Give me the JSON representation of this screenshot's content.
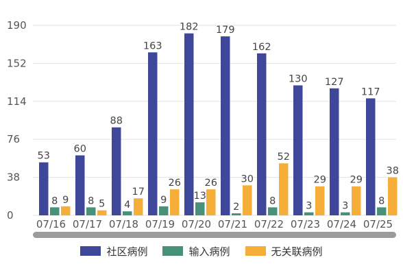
{
  "chart_data": {
    "type": "bar",
    "categories": [
      "07/16",
      "07/17",
      "07/18",
      "07/19",
      "07/20",
      "07/21",
      "07/22",
      "07/23",
      "07/24",
      "07/25"
    ],
    "series": [
      {
        "name": "社区病例",
        "color": "#3f479b",
        "values": [
          53,
          60,
          88,
          163,
          182,
          179,
          162,
          130,
          127,
          117
        ]
      },
      {
        "name": "输入病例",
        "color": "#47917a",
        "values": [
          8,
          8,
          4,
          9,
          13,
          2,
          8,
          3,
          3,
          8
        ]
      },
      {
        "name": "无关联病例",
        "color": "#f6ae3b",
        "values": [
          9,
          5,
          17,
          26,
          26,
          30,
          52,
          29,
          29,
          38
        ]
      }
    ],
    "yticks": [
      0,
      38,
      76,
      114,
      152,
      190
    ],
    "ylim": [
      0,
      190
    ],
    "grid": true,
    "legend_position": "bottom",
    "scrollbar_color": "#9b9b9b"
  }
}
